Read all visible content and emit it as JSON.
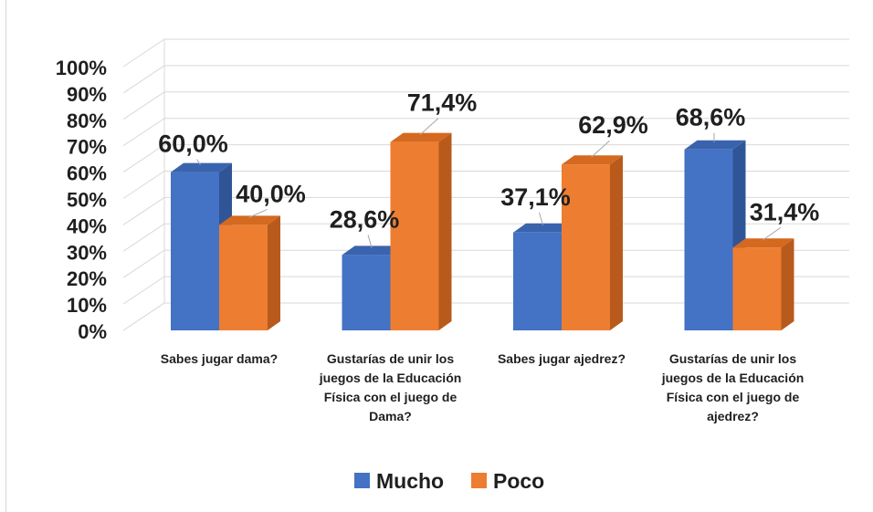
{
  "chart_data": {
    "type": "bar",
    "categories": [
      "Sabes jugar dama?",
      "Gustarías de unir los juegos de la Educación Física con el juego de Dama?",
      "Sabes jugar ajedrez?",
      "Gustarías de unir los juegos de la Educación Física con el juego de ajedrez?"
    ],
    "category_lines": [
      [
        "Sabes jugar dama?"
      ],
      [
        "Gustarías de unir los",
        "juegos de la Educación",
        "Física con el juego de",
        "Dama?"
      ],
      [
        "Sabes jugar ajedrez?"
      ],
      [
        "Gustarías de unir los",
        "juegos de la Educación",
        "Física con el juego de",
        "ajedrez?"
      ]
    ],
    "series": [
      {
        "name": "Mucho",
        "values": [
          60.0,
          28.6,
          37.1,
          68.6
        ],
        "labels": [
          "60,0%",
          "28,6%",
          "37,1%",
          "68,6%"
        ]
      },
      {
        "name": "Poco",
        "values": [
          40.0,
          71.4,
          62.9,
          31.4
        ],
        "labels": [
          "40,0%",
          "71,4%",
          "62,9%",
          "31,4%"
        ]
      }
    ],
    "ylim": [
      0,
      100
    ],
    "yticks": [
      "0%",
      "10%",
      "20%",
      "30%",
      "40%",
      "50%",
      "60%",
      "70%",
      "80%",
      "90%",
      "100%"
    ],
    "title": "",
    "xlabel": "",
    "ylabel": "",
    "grid": true,
    "legend_position": "bottom-center",
    "colors": {
      "Mucho": "#4472c4",
      "Mucho_side": "#2f5597",
      "Mucho_top": "#3a63ad",
      "Poco": "#ed7d31",
      "Poco_side": "#b85a1c",
      "Poco_top": "#d4691f"
    }
  }
}
